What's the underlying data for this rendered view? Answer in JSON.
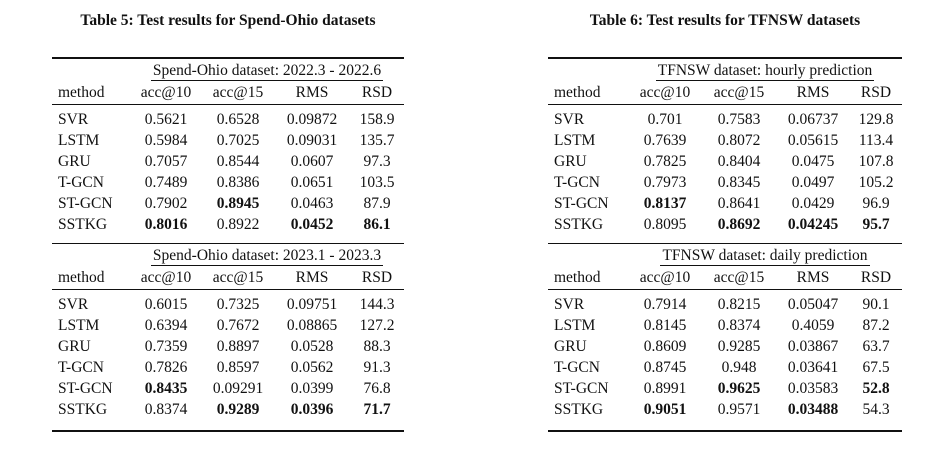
{
  "left": {
    "caption": "Table 5: Test results for Spend-Ohio datasets",
    "method_header": "method",
    "col_headers": [
      "acc@10",
      "acc@15",
      "RMS",
      "RSD"
    ],
    "groups": [
      {
        "label": "Spend-Ohio dataset: 2022.3 - 2022.6",
        "rows": [
          {
            "method": "SVR",
            "values": [
              "0.5621",
              "0.6528",
              "0.09872",
              "158.9"
            ],
            "bold": [
              false,
              false,
              false,
              false
            ]
          },
          {
            "method": "LSTM",
            "values": [
              "0.5984",
              "0.7025",
              "0.09031",
              "135.7"
            ],
            "bold": [
              false,
              false,
              false,
              false
            ]
          },
          {
            "method": "GRU",
            "values": [
              "0.7057",
              "0.8544",
              "0.0607",
              "97.3"
            ],
            "bold": [
              false,
              false,
              false,
              false
            ]
          },
          {
            "method": "T-GCN",
            "values": [
              "0.7489",
              "0.8386",
              "0.0651",
              "103.5"
            ],
            "bold": [
              false,
              false,
              false,
              false
            ]
          },
          {
            "method": "ST-GCN",
            "values": [
              "0.7902",
              "0.8945",
              "0.0463",
              "87.9"
            ],
            "bold": [
              false,
              true,
              false,
              false
            ]
          },
          {
            "method": "SSTKG",
            "values": [
              "0.8016",
              "0.8922",
              "0.0452",
              "86.1"
            ],
            "bold": [
              true,
              false,
              true,
              true
            ]
          }
        ]
      },
      {
        "label": "Spend-Ohio dataset: 2023.1 - 2023.3",
        "rows": [
          {
            "method": "SVR",
            "values": [
              "0.6015",
              "0.7325",
              "0.09751",
              "144.3"
            ],
            "bold": [
              false,
              false,
              false,
              false
            ]
          },
          {
            "method": "LSTM",
            "values": [
              "0.6394",
              "0.7672",
              "0.08865",
              "127.2"
            ],
            "bold": [
              false,
              false,
              false,
              false
            ]
          },
          {
            "method": "GRU",
            "values": [
              "0.7359",
              "0.8897",
              "0.0528",
              "88.3"
            ],
            "bold": [
              false,
              false,
              false,
              false
            ]
          },
          {
            "method": "T-GCN",
            "values": [
              "0.7826",
              "0.8597",
              "0.0562",
              "91.3"
            ],
            "bold": [
              false,
              false,
              false,
              false
            ]
          },
          {
            "method": "ST-GCN",
            "values": [
              "0.8435",
              "0.09291",
              "0.0399",
              "76.8"
            ],
            "bold": [
              true,
              false,
              false,
              false
            ]
          },
          {
            "method": "SSTKG",
            "values": [
              "0.8374",
              "0.9289",
              "0.0396",
              "71.7"
            ],
            "bold": [
              false,
              true,
              true,
              true
            ]
          }
        ]
      }
    ]
  },
  "right": {
    "caption": "Table 6: Test results for TFNSW datasets",
    "method_header": "method",
    "col_headers": [
      "acc@10",
      "acc@15",
      "RMS",
      "RSD"
    ],
    "groups": [
      {
        "label": "TFNSW dataset: hourly prediction",
        "rows": [
          {
            "method": "SVR",
            "values": [
              "0.701",
              "0.7583",
              "0.06737",
              "129.8"
            ],
            "bold": [
              false,
              false,
              false,
              false
            ]
          },
          {
            "method": "LSTM",
            "values": [
              "0.7639",
              "0.8072",
              "0.05615",
              "113.4"
            ],
            "bold": [
              false,
              false,
              false,
              false
            ]
          },
          {
            "method": "GRU",
            "values": [
              "0.7825",
              "0.8404",
              "0.0475",
              "107.8"
            ],
            "bold": [
              false,
              false,
              false,
              false
            ]
          },
          {
            "method": "T-GCN",
            "values": [
              "0.7973",
              "0.8345",
              "0.0497",
              "105.2"
            ],
            "bold": [
              false,
              false,
              false,
              false
            ]
          },
          {
            "method": "ST-GCN",
            "values": [
              "0.8137",
              "0.8641",
              "0.0429",
              "96.9"
            ],
            "bold": [
              true,
              false,
              false,
              false
            ]
          },
          {
            "method": "SSTKG",
            "values": [
              "0.8095",
              "0.8692",
              "0.04245",
              "95.7"
            ],
            "bold": [
              false,
              true,
              true,
              true
            ]
          }
        ]
      },
      {
        "label": "TFNSW dataset: daily prediction",
        "rows": [
          {
            "method": "SVR",
            "values": [
              "0.7914",
              "0.8215",
              "0.05047",
              "90.1"
            ],
            "bold": [
              false,
              false,
              false,
              false
            ]
          },
          {
            "method": "LSTM",
            "values": [
              "0.8145",
              "0.8374",
              "0.4059",
              "87.2"
            ],
            "bold": [
              false,
              false,
              false,
              false
            ]
          },
          {
            "method": "GRU",
            "values": [
              "0.8609",
              "0.9285",
              "0.03867",
              "63.7"
            ],
            "bold": [
              false,
              false,
              false,
              false
            ]
          },
          {
            "method": "T-GCN",
            "values": [
              "0.8745",
              "0.948",
              "0.03641",
              "67.5"
            ],
            "bold": [
              false,
              false,
              false,
              false
            ]
          },
          {
            "method": "ST-GCN",
            "values": [
              "0.8991",
              "0.9625",
              "0.03583",
              "52.8"
            ],
            "bold": [
              false,
              true,
              false,
              true
            ]
          },
          {
            "method": "SSTKG",
            "values": [
              "0.9051",
              "0.9571",
              "0.03488",
              "54.3"
            ],
            "bold": [
              true,
              false,
              true,
              false
            ]
          }
        ]
      }
    ]
  }
}
